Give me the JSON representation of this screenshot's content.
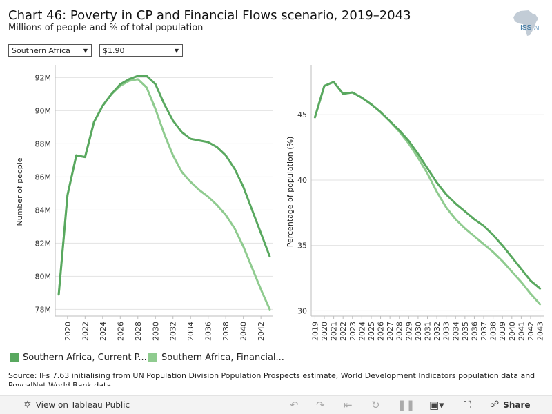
{
  "header": {
    "title": "Chart 46: Poverty in CP and Financial Flows scenario, 2019–2043",
    "subtitle": "Millions of people and % of total population"
  },
  "filters": {
    "region": "Southern Africa",
    "poverty_line": "$1.90"
  },
  "logo": {
    "text_iss": "ISS",
    "text_afi": "AFI"
  },
  "legend": {
    "items": [
      {
        "label": "Southern Africa, Current P...",
        "color": "#59a85f"
      },
      {
        "label": "Southern Africa, Financial...",
        "color": "#8fcb8f"
      }
    ]
  },
  "source": "Source: IFs 7.63 initialising from UN Population Division Population Prospects estimate, World Development Indicators population data and PovcalNet World Bank data",
  "footer": {
    "view_label": "View on Tableau Public",
    "share_label": "Share"
  },
  "chart_data": [
    {
      "type": "line",
      "ylabel": "Number of people",
      "ylim": [
        77.6,
        92.6
      ],
      "yticks": [
        78,
        80,
        82,
        84,
        86,
        88,
        90,
        92
      ],
      "ytick_labels": [
        "78M",
        "80M",
        "82M",
        "84M",
        "86M",
        "88M",
        "90M",
        "92M"
      ],
      "xlim": [
        2018.6,
        2043.4
      ],
      "xticks": [
        2020,
        2022,
        2024,
        2026,
        2028,
        2030,
        2032,
        2034,
        2036,
        2038,
        2040,
        2042
      ],
      "x": [
        2019,
        2020,
        2021,
        2022,
        2023,
        2024,
        2025,
        2026,
        2027,
        2028,
        2029,
        2030,
        2031,
        2032,
        2033,
        2034,
        2035,
        2036,
        2037,
        2038,
        2039,
        2040,
        2041,
        2042,
        2043
      ],
      "series": [
        {
          "name": "Southern Africa, Current Path",
          "color": "#59a85f",
          "values": [
            78.9,
            84.9,
            87.3,
            87.2,
            89.3,
            90.3,
            91.0,
            91.6,
            91.9,
            92.1,
            92.1,
            91.6,
            90.4,
            89.4,
            88.7,
            88.3,
            88.2,
            88.1,
            87.8,
            87.3,
            86.5,
            85.4,
            84.0,
            82.6,
            81.2
          ]
        },
        {
          "name": "Southern Africa, Financial Flows",
          "color": "#8fcb8f",
          "values": [
            78.9,
            84.9,
            87.3,
            87.2,
            89.3,
            90.3,
            91.0,
            91.5,
            91.8,
            91.9,
            91.4,
            90.1,
            88.6,
            87.3,
            86.3,
            85.7,
            85.2,
            84.8,
            84.3,
            83.7,
            82.9,
            81.8,
            80.5,
            79.2,
            78.0
          ]
        }
      ]
    },
    {
      "type": "line",
      "ylabel": "Percentage of population (%)",
      "ylim": [
        29.6,
        48.6
      ],
      "yticks": [
        30,
        35,
        40,
        45
      ],
      "ytick_labels": [
        "30",
        "35",
        "40",
        "45"
      ],
      "xlim": [
        2018.6,
        2043.4
      ],
      "xticks": [
        2019,
        2020,
        2021,
        2022,
        2023,
        2024,
        2025,
        2026,
        2027,
        2028,
        2029,
        2030,
        2031,
        2032,
        2033,
        2034,
        2035,
        2036,
        2037,
        2038,
        2039,
        2040,
        2041,
        2042,
        2043
      ],
      "x": [
        2019,
        2020,
        2021,
        2022,
        2023,
        2024,
        2025,
        2026,
        2027,
        2028,
        2029,
        2030,
        2031,
        2032,
        2033,
        2034,
        2035,
        2036,
        2037,
        2038,
        2039,
        2040,
        2041,
        2042,
        2043
      ],
      "series": [
        {
          "name": "Southern Africa, Current Path",
          "color": "#59a85f",
          "values": [
            44.8,
            47.2,
            47.5,
            46.6,
            46.7,
            46.3,
            45.8,
            45.2,
            44.5,
            43.8,
            43.0,
            42.0,
            40.9,
            39.8,
            38.9,
            38.2,
            37.6,
            37.0,
            36.5,
            35.8,
            35.0,
            34.1,
            33.2,
            32.3,
            31.7
          ]
        },
        {
          "name": "Southern Africa, Financial Flows",
          "color": "#8fcb8f",
          "values": [
            44.8,
            47.2,
            47.5,
            46.6,
            46.7,
            46.3,
            45.8,
            45.2,
            44.5,
            43.7,
            42.8,
            41.7,
            40.5,
            39.1,
            37.9,
            37.0,
            36.3,
            35.7,
            35.1,
            34.5,
            33.8,
            33.0,
            32.2,
            31.3,
            30.5
          ]
        }
      ]
    }
  ]
}
